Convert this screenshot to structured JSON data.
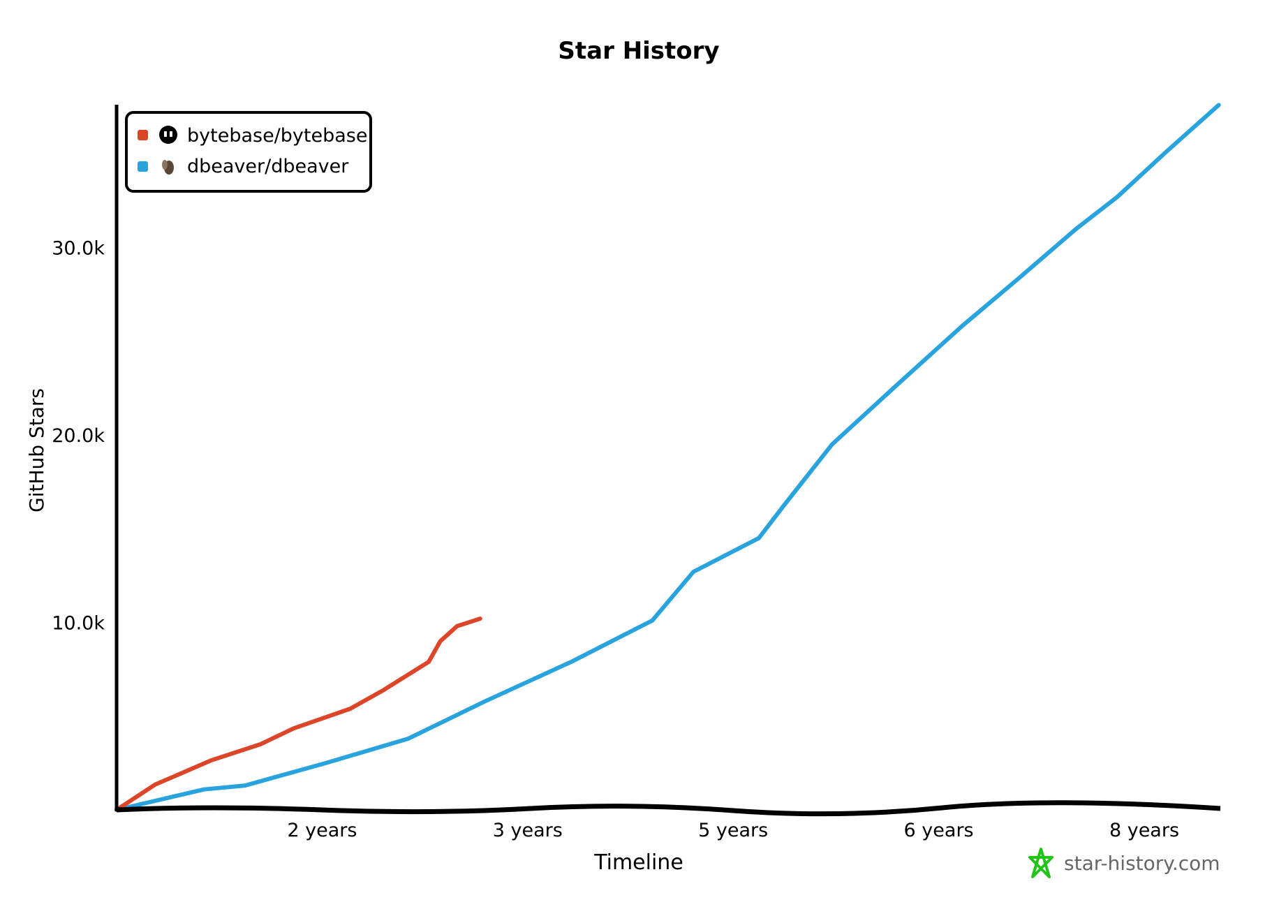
{
  "chart_data": {
    "type": "line",
    "title": "Star History",
    "xlabel": "Timeline",
    "ylabel": "GitHub Stars",
    "x_unit": "years",
    "xlim": [
      0,
      8.58
    ],
    "ylim": [
      0,
      37600
    ],
    "x_ticks": [
      {
        "value": 1.6,
        "label": "2 years"
      },
      {
        "value": 3.2,
        "label": "3 years"
      },
      {
        "value": 4.8,
        "label": "5 years"
      },
      {
        "value": 6.4,
        "label": "6 years"
      },
      {
        "value": 8.0,
        "label": "8 years"
      }
    ],
    "y_ticks": [
      {
        "value": 10000,
        "label": "10.0k"
      },
      {
        "value": 20000,
        "label": "20.0k"
      },
      {
        "value": 30000,
        "label": "30.0k"
      }
    ],
    "grid": false,
    "legend_position": "top-left",
    "series": [
      {
        "name": "bytebase/bytebase",
        "color": "#dd4528",
        "icon": "github-logo-icon",
        "x": [
          0,
          0.3,
          0.74,
          1.12,
          1.38,
          1.82,
          2.08,
          2.43,
          2.52,
          2.65,
          2.83
        ],
        "y": [
          0,
          1350,
          2650,
          3500,
          4350,
          5400,
          6400,
          7900,
          9000,
          9800,
          10200
        ]
      },
      {
        "name": "dbeaver/dbeaver",
        "color": "#28a3dd",
        "icon": "beaver-avatar-icon",
        "x": [
          0,
          0.68,
          1.0,
          1.63,
          2.27,
          2.87,
          3.54,
          4.17,
          4.49,
          5.0,
          5.19,
          5.57,
          6.08,
          6.58,
          7.03,
          7.47,
          7.79,
          8.17,
          8.58
        ],
        "y": [
          0,
          1090,
          1300,
          2500,
          3800,
          5800,
          7900,
          10100,
          12700,
          14500,
          16200,
          19500,
          22700,
          25800,
          28400,
          31000,
          32700,
          35100,
          37600
        ]
      }
    ]
  },
  "watermark": {
    "text": "star-history.com",
    "color": "#22c417"
  }
}
